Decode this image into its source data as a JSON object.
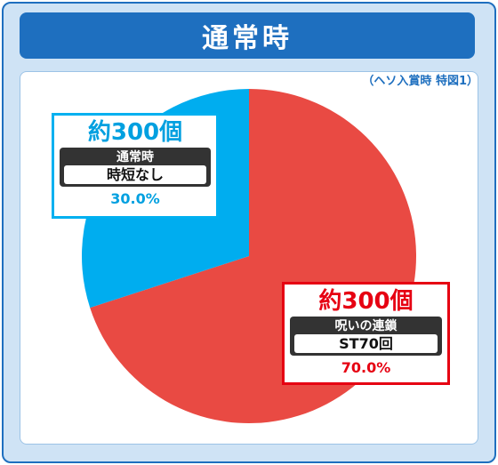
{
  "header": {
    "title": "通常時"
  },
  "note": "（ヘソ入賞時 特図1）",
  "chart_data": {
    "type": "pie",
    "title": "通常時",
    "subtitle": "（ヘソ入賞時 特図1）",
    "slices": [
      {
        "count": "約300個",
        "mode": "呪いの連鎖",
        "detail": "ST70回",
        "percent_label": "70.0%",
        "value": 70.0,
        "color": "#e94a43"
      },
      {
        "count": "約300個",
        "mode": "通常時",
        "detail": "時短なし",
        "percent_label": "30.0%",
        "value": 30.0,
        "color": "#00adef"
      }
    ]
  },
  "colors": {
    "frame": "#1e6fbf",
    "background": "#cfe3f5"
  }
}
